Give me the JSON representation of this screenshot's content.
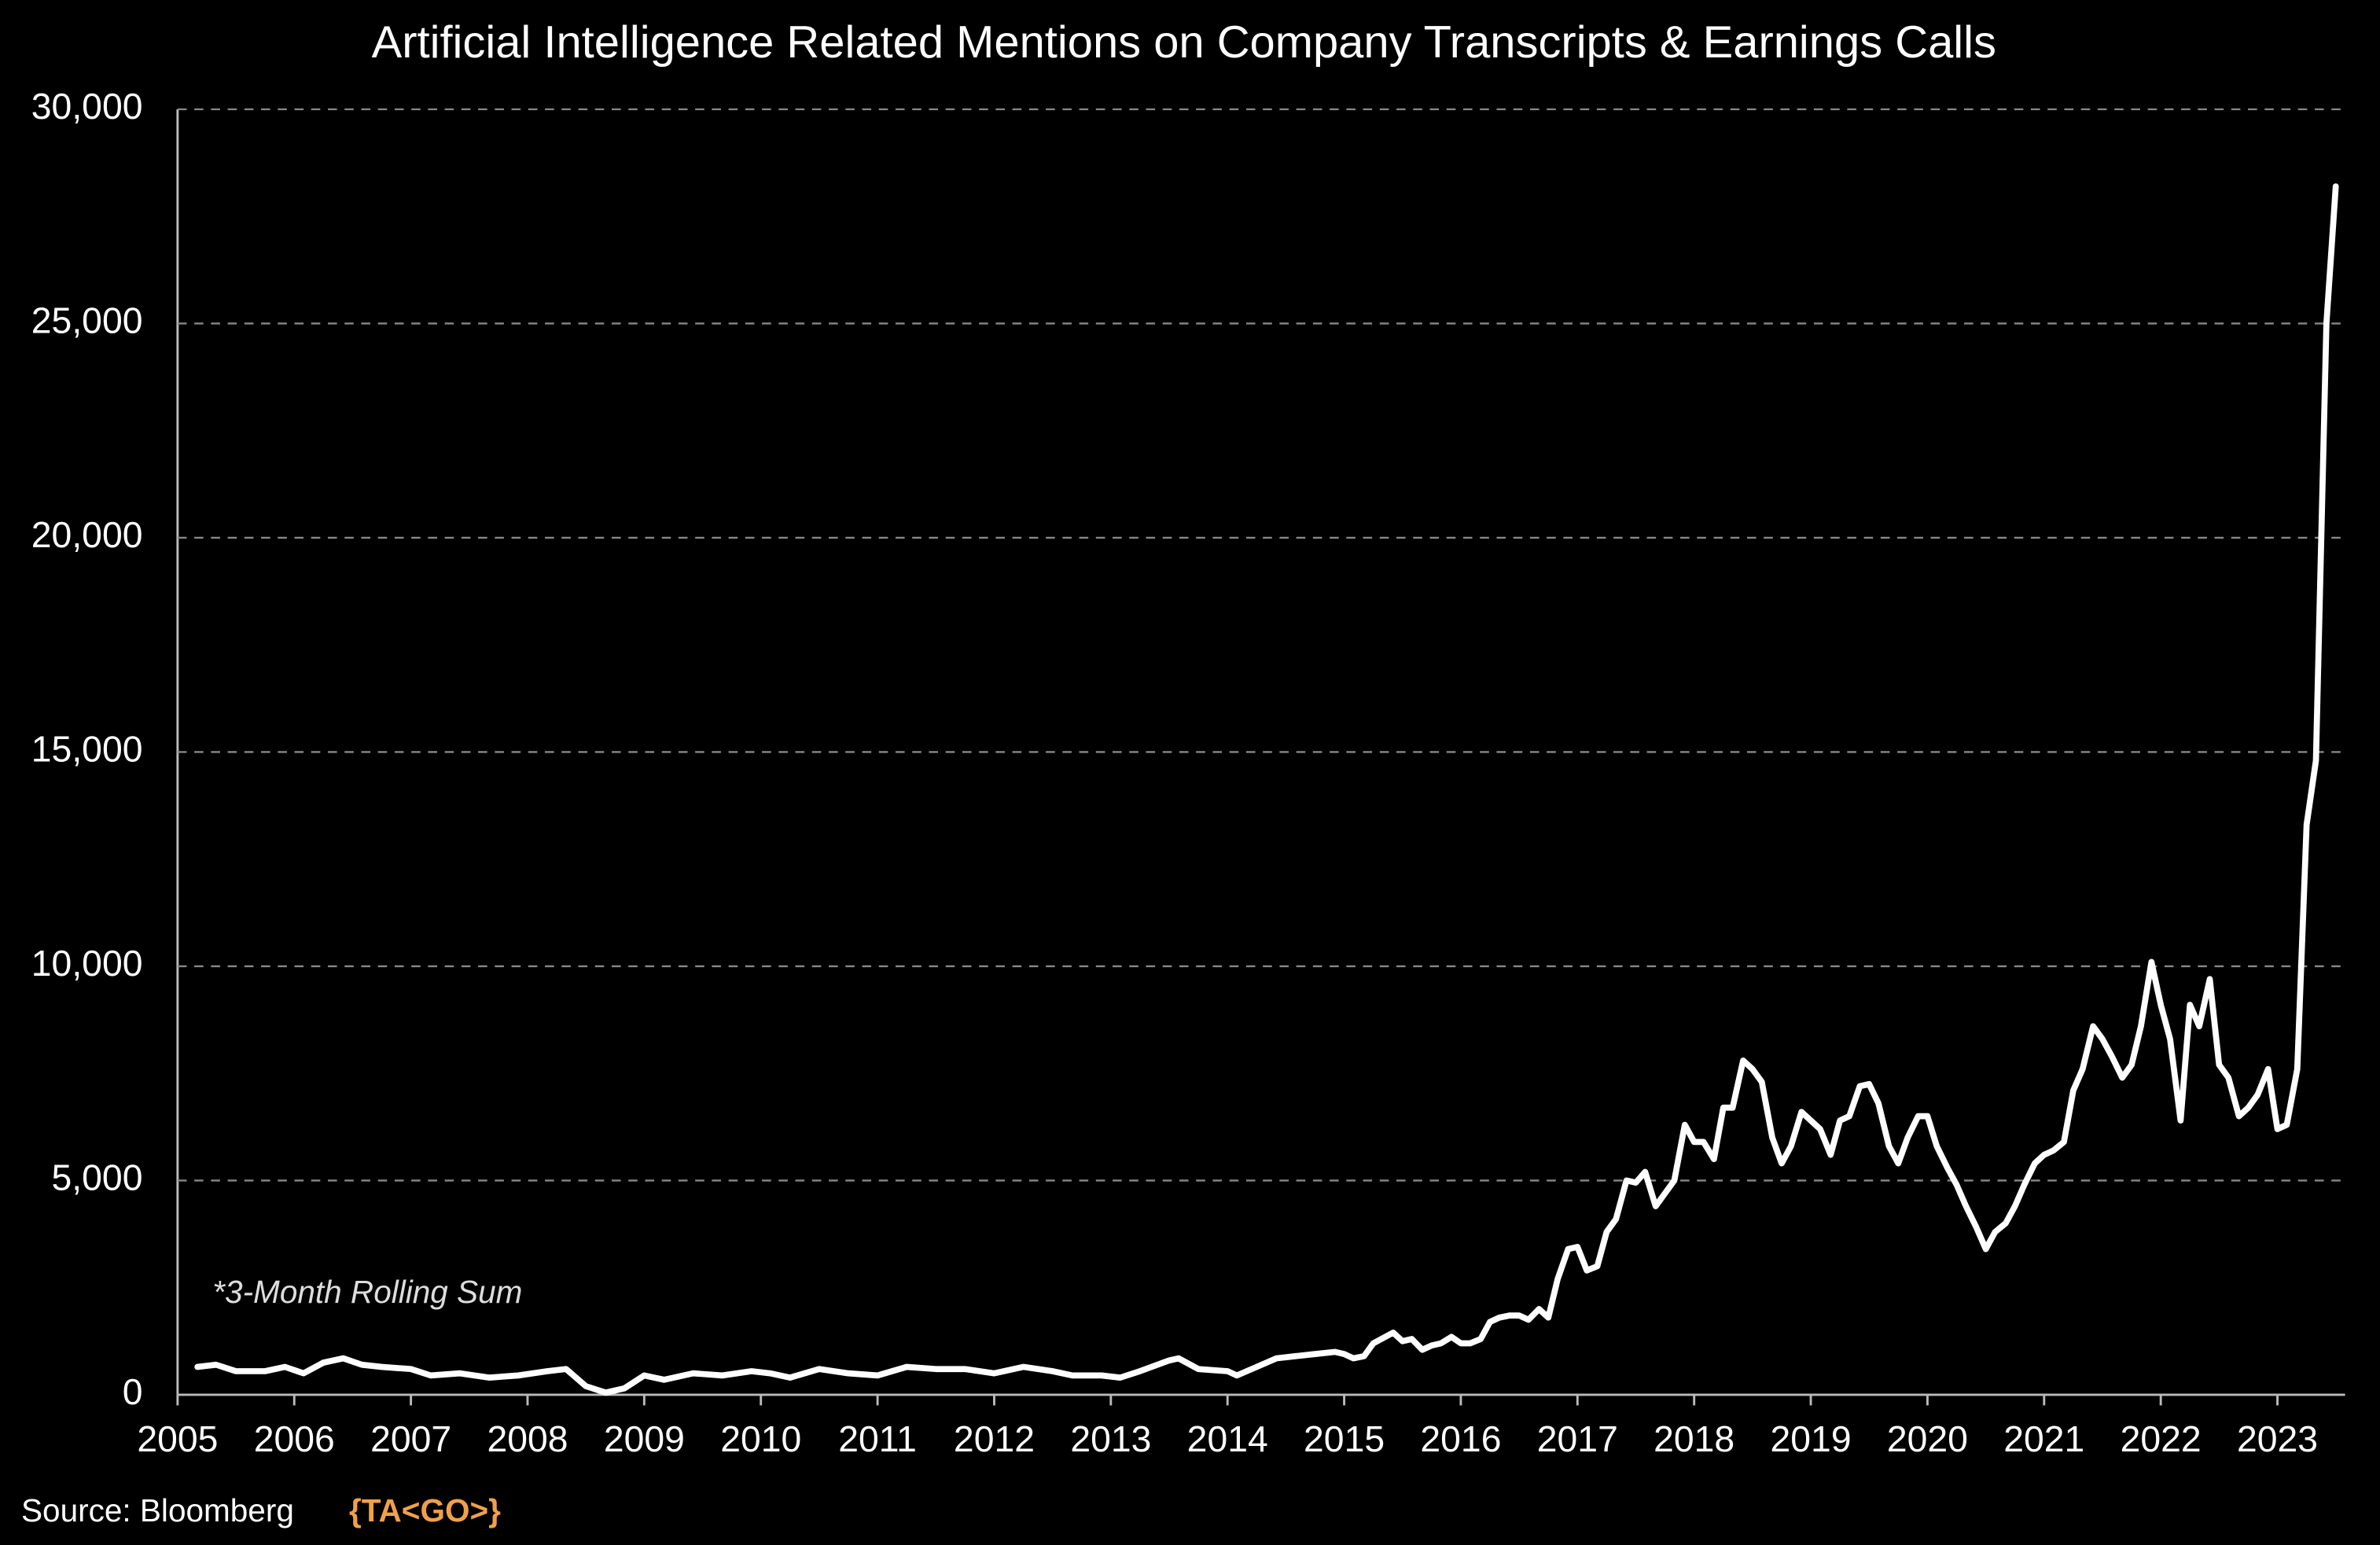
{
  "chart_data": {
    "type": "line",
    "title": "Artificial Intelligence Related Mentions on Company Transcripts & Earnings Calls",
    "annotation": "*3-Month Rolling Sum",
    "source": "Source: Bloomberg",
    "source_code": "{TA<GO>}",
    "color": "#ffffff",
    "grid": true,
    "xlim": [
      2005,
      2023.58
    ],
    "xticks": [
      2005,
      2006,
      2007,
      2008,
      2009,
      2010,
      2011,
      2012,
      2013,
      2014,
      2015,
      2016,
      2017,
      2018,
      2019,
      2020,
      2021,
      2022,
      2023
    ],
    "ylim": [
      0,
      30000
    ],
    "yticks": [
      0,
      {
        "value": 5000,
        "label": "5,000"
      },
      {
        "value": 10000,
        "label": "10,000"
      },
      {
        "value": 15000,
        "label": "15,000"
      },
      {
        "value": 20000,
        "label": "20,000"
      },
      {
        "value": 25000,
        "label": "25,000"
      },
      {
        "value": 30000,
        "label": "30,000"
      }
    ],
    "x": [
      2005.17,
      2005.33,
      2005.5,
      2005.75,
      2005.92,
      2006.08,
      2006.25,
      2006.42,
      2006.58,
      2006.75,
      2007.0,
      2007.17,
      2007.42,
      2007.67,
      2007.92,
      2008.17,
      2008.33,
      2008.5,
      2008.67,
      2008.83,
      2009.0,
      2009.17,
      2009.42,
      2009.67,
      2009.92,
      2010.08,
      2010.25,
      2010.5,
      2010.75,
      2011.0,
      2011.25,
      2011.5,
      2011.75,
      2012.0,
      2012.25,
      2012.5,
      2012.67,
      2012.92,
      2013.08,
      2013.25,
      2013.5,
      2013.58,
      2013.75,
      2014.0,
      2014.08,
      2014.25,
      2014.42,
      2014.58,
      2014.75,
      2014.92,
      2015.0,
      2015.08,
      2015.17,
      2015.25,
      2015.42,
      2015.5,
      2015.58,
      2015.67,
      2015.75,
      2015.83,
      2015.92,
      2016.0,
      2016.08,
      2016.17,
      2016.25,
      2016.33,
      2016.42,
      2016.5,
      2016.58,
      2016.67,
      2016.75,
      2016.83,
      2016.92,
      2017.0,
      2017.08,
      2017.17,
      2017.25,
      2017.33,
      2017.42,
      2017.5,
      2017.58,
      2017.67,
      2017.75,
      2017.83,
      2017.92,
      2018.0,
      2018.08,
      2018.17,
      2018.25,
      2018.33,
      2018.42,
      2018.5,
      2018.58,
      2018.67,
      2018.75,
      2018.83,
      2018.92,
      2019.0,
      2019.08,
      2019.17,
      2019.25,
      2019.33,
      2019.42,
      2019.5,
      2019.58,
      2019.67,
      2019.75,
      2019.83,
      2019.92,
      2020.0,
      2020.08,
      2020.17,
      2020.25,
      2020.33,
      2020.42,
      2020.5,
      2020.58,
      2020.67,
      2020.75,
      2020.83,
      2020.92,
      2021.0,
      2021.08,
      2021.17,
      2021.25,
      2021.33,
      2021.42,
      2021.5,
      2021.58,
      2021.67,
      2021.75,
      2021.83,
      2021.92,
      2022.0,
      2022.08,
      2022.17,
      2022.25,
      2022.33,
      2022.42,
      2022.5,
      2022.58,
      2022.67,
      2022.75,
      2022.83,
      2022.92,
      2023.0,
      2023.08,
      2023.17,
      2023.25,
      2023.33,
      2023.42,
      2023.5
    ],
    "values": [
      650,
      700,
      550,
      550,
      650,
      500,
      750,
      850,
      700,
      650,
      600,
      450,
      500,
      400,
      450,
      550,
      600,
      200,
      50,
      150,
      450,
      350,
      500,
      450,
      550,
      500,
      400,
      600,
      500,
      450,
      650,
      600,
      600,
      500,
      650,
      550,
      450,
      450,
      400,
      550,
      800,
      850,
      600,
      550,
      450,
      650,
      850,
      900,
      950,
      1000,
      950,
      850,
      900,
      1200,
      1450,
      1250,
      1300,
      1050,
      1150,
      1200,
      1350,
      1200,
      1200,
      1300,
      1700,
      1800,
      1850,
      1850,
      1750,
      2000,
      1800,
      2700,
      3400,
      3450,
      2900,
      3000,
      3800,
      4100,
      5000,
      4950,
      5200,
      4400,
      4700,
      5000,
      6300,
      5900,
      5900,
      5500,
      6700,
      6700,
      7800,
      7600,
      7300,
      6000,
      5400,
      5800,
      6600,
      6400,
      6200,
      5600,
      6400,
      6500,
      7200,
      7250,
      6800,
      5800,
      5400,
      6000,
      6500,
      6500,
      5800,
      5300,
      4900,
      4400,
      3900,
      3400,
      3800,
      4000,
      4400,
      4900,
      5400,
      5600,
      5700,
      5900,
      7100,
      7600,
      8600,
      8300,
      7900,
      7400,
      7700,
      8600,
      10100,
      9100,
      8300,
      6400,
      9100,
      8600,
      9700,
      7700,
      7400,
      6500,
      6700,
      7000,
      7600,
      6200,
      6300,
      7600,
      13300,
      14800,
      25000,
      28200
    ]
  }
}
